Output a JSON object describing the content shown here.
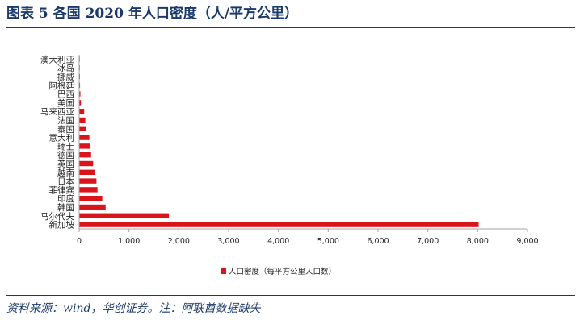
{
  "header": {
    "title": "图表 5   各国 2020 年人口密度（人/平方公里）"
  },
  "footer": {
    "source": "资料来源：wind，华创证券。注：阿联酋数据缺失"
  },
  "colors": {
    "accent": "#1b3a6b",
    "bar": "#d9151b",
    "axis": "#a6a6a6",
    "text": "#1f1f1f"
  },
  "chart_data": {
    "type": "bar",
    "orientation": "horizontal",
    "categories": [
      "澳大利亚",
      "冰岛",
      "挪威",
      "阿根廷",
      "巴西",
      "美国",
      "马来西亚",
      "法国",
      "泰国",
      "意大利",
      "瑞士",
      "德国",
      "英国",
      "越南",
      "日本",
      "菲律宾",
      "印度",
      "韩国",
      "马尔代夫",
      "新加坡"
    ],
    "series": [
      {
        "name": "人口密度（每平方公里人口数）",
        "values": [
          3,
          4,
          15,
          17,
          25,
          36,
          100,
          123,
          137,
          205,
          219,
          240,
          281,
          313,
          347,
          368,
          464,
          531,
          1802,
          8019
        ]
      }
    ],
    "xticks": [
      "0",
      "1,000",
      "2,000",
      "3,000",
      "4,000",
      "5,000",
      "6,000",
      "7,000",
      "8,000",
      "9,000"
    ],
    "xlim": [
      0,
      9000
    ],
    "legend_position": "bottom",
    "grid": false
  }
}
